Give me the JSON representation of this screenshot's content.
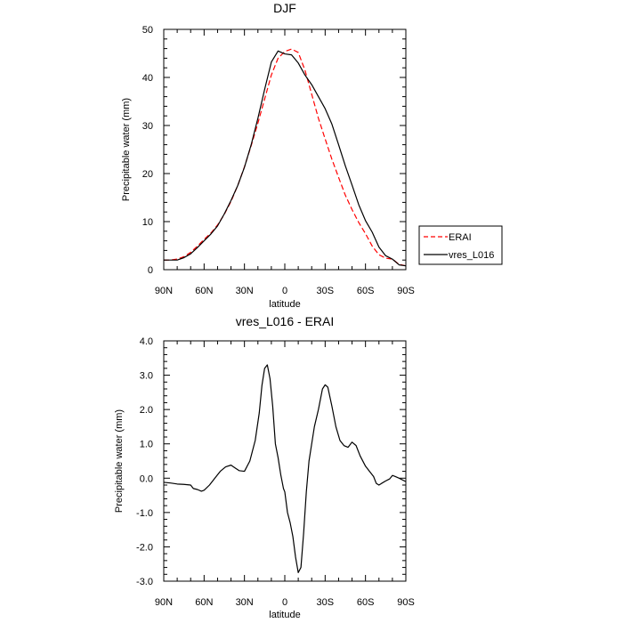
{
  "chart_data": [
    {
      "type": "line",
      "title": "DJF",
      "xlabel": "latitude",
      "ylabel": "Precipitable water (mm)",
      "xlim": [
        90,
        -90
      ],
      "ylim": [
        0,
        50
      ],
      "x_ticks": [
        {
          "value": 90,
          "label": "90N"
        },
        {
          "value": 60,
          "label": "60N"
        },
        {
          "value": 30,
          "label": "30N"
        },
        {
          "value": 0,
          "label": "0"
        },
        {
          "value": -30,
          "label": "30S"
        },
        {
          "value": -60,
          "label": "60S"
        },
        {
          "value": -90,
          "label": "90S"
        }
      ],
      "y_ticks": [
        {
          "value": 0,
          "label": "0"
        },
        {
          "value": 10,
          "label": "10"
        },
        {
          "value": 20,
          "label": "20"
        },
        {
          "value": 30,
          "label": "30"
        },
        {
          "value": 40,
          "label": "40"
        },
        {
          "value": 50,
          "label": "50"
        }
      ],
      "legend": {
        "placement": "right-bottom"
      },
      "series": [
        {
          "name": "ERAI",
          "color": "#ff0000",
          "dash": true,
          "x": [
            90,
            85,
            80,
            75,
            70,
            65,
            60,
            55,
            50,
            45,
            40,
            35,
            30,
            25,
            20,
            15,
            10,
            5,
            0,
            -5,
            -10,
            -15,
            -20,
            -25,
            -30,
            -35,
            -40,
            -45,
            -50,
            -55,
            -60,
            -65,
            -70,
            -75,
            -80,
            -85,
            -90
          ],
          "y": [
            2.0,
            2.0,
            2.2,
            2.7,
            3.6,
            4.9,
            6.3,
            7.6,
            9.3,
            11.5,
            14.2,
            17.5,
            21.4,
            25.8,
            30.5,
            35.5,
            40.5,
            44.0,
            45.4,
            45.9,
            45.2,
            41.5,
            36.5,
            31.5,
            27.2,
            23.0,
            19.2,
            15.5,
            12.5,
            9.8,
            7.5,
            4.9,
            3.1,
            2.4,
            2.2,
            1.1,
            0.8
          ]
        },
        {
          "name": "vres_L016",
          "color": "#000000",
          "dash": false,
          "x": [
            90,
            85,
            80,
            75,
            70,
            65,
            60,
            55,
            50,
            45,
            40,
            35,
            30,
            25,
            20,
            15,
            10,
            5,
            0,
            -5,
            -10,
            -15,
            -20,
            -25,
            -30,
            -35,
            -40,
            -45,
            -50,
            -55,
            -60,
            -65,
            -70,
            -75,
            -80,
            -85,
            -90
          ],
          "y": [
            2.0,
            2.0,
            2.0,
            2.5,
            3.3,
            4.6,
            6.0,
            7.4,
            9.1,
            11.6,
            14.4,
            17.5,
            21.3,
            26.0,
            31.5,
            37.5,
            43.2,
            45.5,
            44.9,
            44.7,
            43.0,
            40.5,
            38.5,
            36.0,
            33.5,
            30.3,
            26.0,
            21.6,
            17.6,
            13.5,
            10.2,
            7.8,
            4.7,
            2.9,
            2.2,
            1.0,
            0.8
          ]
        }
      ]
    },
    {
      "type": "line",
      "title": "vres_L016 - ERAI",
      "xlabel": "latitude",
      "ylabel": "Precipitable water (mm)",
      "xlim": [
        90,
        -90
      ],
      "ylim": [
        -3.0,
        4.0
      ],
      "x_ticks": [
        {
          "value": 90,
          "label": "90N"
        },
        {
          "value": 60,
          "label": "60N"
        },
        {
          "value": 30,
          "label": "30N"
        },
        {
          "value": 0,
          "label": "0"
        },
        {
          "value": -30,
          "label": "30S"
        },
        {
          "value": -60,
          "label": "60S"
        },
        {
          "value": -90,
          "label": "90S"
        }
      ],
      "y_ticks": [
        {
          "value": -3.0,
          "label": "-3.0"
        },
        {
          "value": -2.0,
          "label": "-2.0"
        },
        {
          "value": -1.0,
          "label": "-1.0"
        },
        {
          "value": 0.0,
          "label": "0.0"
        },
        {
          "value": 1.0,
          "label": "1.0"
        },
        {
          "value": 2.0,
          "label": "2.0"
        },
        {
          "value": 3.0,
          "label": "3.0"
        },
        {
          "value": 4.0,
          "label": "4.0"
        }
      ],
      "series": [
        {
          "name": "vres_L016 - ERAI",
          "color": "#000000",
          "dash": false,
          "x": [
            90,
            85,
            80,
            75,
            70,
            68,
            65,
            62,
            60,
            56,
            52,
            48,
            44,
            40,
            37,
            34,
            30,
            26,
            22,
            19,
            17,
            15,
            13,
            11,
            9,
            7,
            5,
            3,
            1,
            0,
            -2,
            -4,
            -6,
            -8,
            -10,
            -12,
            -14,
            -16,
            -18,
            -20,
            -22,
            -25,
            -28,
            -30,
            -32,
            -35,
            -38,
            -41,
            -44,
            -47,
            -50,
            -53,
            -56,
            -60,
            -63,
            -66,
            -68,
            -70,
            -72,
            -75,
            -78,
            -80,
            -82,
            -85,
            -88,
            -90
          ],
          "y": [
            -0.12,
            -0.14,
            -0.17,
            -0.18,
            -0.2,
            -0.3,
            -0.33,
            -0.38,
            -0.35,
            -0.2,
            0.0,
            0.2,
            0.33,
            0.38,
            0.3,
            0.22,
            0.2,
            0.5,
            1.1,
            1.9,
            2.7,
            3.2,
            3.3,
            2.9,
            2.1,
            1.0,
            0.6,
            0.1,
            -0.3,
            -0.4,
            -1.0,
            -1.3,
            -1.7,
            -2.3,
            -2.75,
            -2.6,
            -1.6,
            -0.4,
            0.5,
            1.0,
            1.5,
            2.0,
            2.6,
            2.72,
            2.65,
            2.1,
            1.5,
            1.1,
            0.95,
            0.9,
            1.05,
            0.95,
            0.65,
            0.35,
            0.2,
            0.05,
            -0.15,
            -0.2,
            -0.15,
            -0.08,
            -0.02,
            0.08,
            0.05,
            0.0,
            -0.06,
            -0.1
          ]
        }
      ]
    }
  ]
}
